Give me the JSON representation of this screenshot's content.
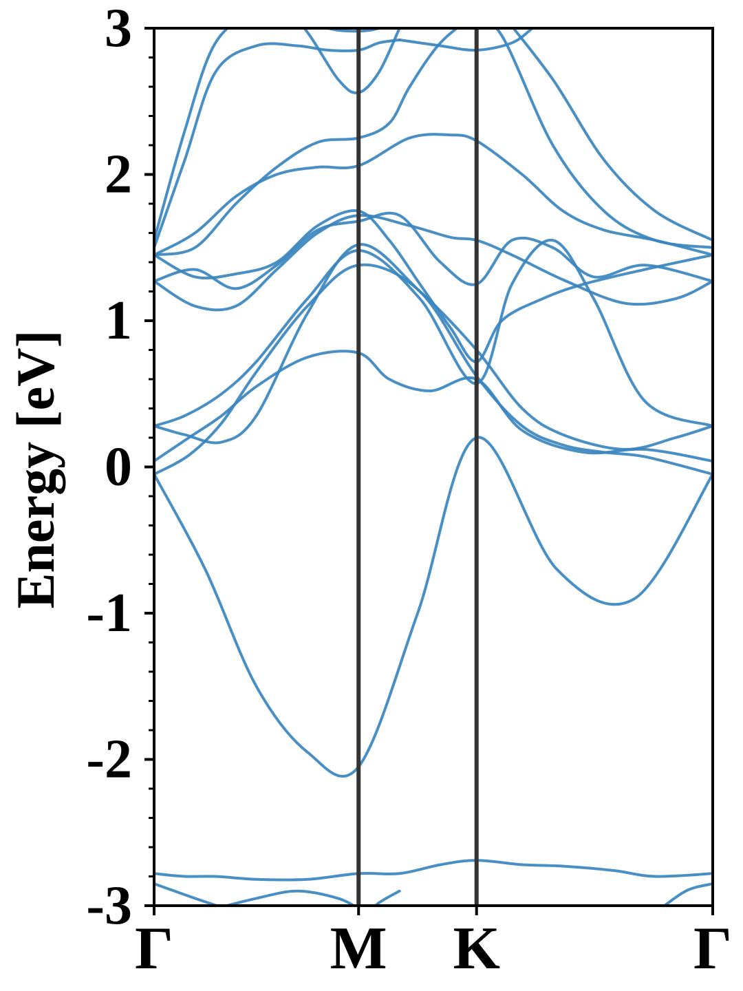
{
  "chart_data": {
    "type": "line",
    "title": "",
    "xlabel": "",
    "ylabel": "Energy [eV]",
    "ylim": [
      -3,
      3
    ],
    "yticks": [
      "3",
      "2",
      "1",
      "0",
      "-1",
      "-2",
      "-3"
    ],
    "ytick_values": [
      3,
      2,
      1,
      0,
      -1,
      -2,
      -3
    ],
    "x_ticks": [
      {
        "label": "Γ",
        "k": 0.0
      },
      {
        "label": "M",
        "k": 1.0
      },
      {
        "label": "K",
        "k": 1.577
      },
      {
        "label": "Γ",
        "k": 2.732
      }
    ],
    "xlim": [
      0,
      2.732
    ],
    "grid": false,
    "line_color": "#3a86bf",
    "vline_color": "#333333",
    "series": [
      {
        "x": [
          0,
          0.25,
          0.5,
          0.75,
          1.0,
          1.289,
          1.577,
          1.97,
          2.35,
          2.732
        ],
        "values": [
          -0.05,
          -0.7,
          -1.5,
          -1.95,
          -2.05,
          -1.0,
          0.2,
          -0.7,
          -0.9,
          -0.05
        ]
      },
      {
        "x": [
          0,
          0.17,
          0.33,
          0.5,
          0.75,
          1.0,
          1.15,
          1.35,
          1.577,
          1.8,
          2.1,
          2.4,
          2.732
        ],
        "values": [
          0.04,
          0.2,
          0.35,
          0.55,
          0.75,
          0.78,
          0.6,
          0.52,
          0.6,
          0.25,
          0.1,
          0.12,
          0.04
        ]
      },
      {
        "x": [
          0,
          0.17,
          0.33,
          0.5,
          0.75,
          1.0,
          1.3,
          1.577,
          1.8,
          2.0,
          2.2,
          2.4,
          2.732
        ],
        "values": [
          -0.05,
          0.08,
          0.3,
          0.65,
          1.1,
          1.38,
          1.2,
          0.62,
          0.28,
          0.15,
          0.1,
          0.07,
          -0.05
        ]
      },
      {
        "x": [
          0,
          0.15,
          0.33,
          0.5,
          0.75,
          1.0,
          1.3,
          1.577,
          1.8,
          2.0,
          2.3,
          2.55,
          2.732
        ],
        "values": [
          0.28,
          0.22,
          0.17,
          0.35,
          1.05,
          1.52,
          1.2,
          0.8,
          0.4,
          0.22,
          0.12,
          0.2,
          0.28
        ]
      },
      {
        "x": [
          0,
          0.15,
          0.33,
          0.5,
          0.75,
          1.0,
          1.3,
          1.577,
          1.75,
          1.95,
          2.15,
          2.4,
          2.732
        ],
        "values": [
          0.28,
          0.35,
          0.5,
          0.72,
          1.15,
          1.48,
          1.15,
          0.57,
          1.25,
          1.55,
          1.15,
          0.45,
          0.28
        ]
      },
      {
        "x": [
          0,
          0.2,
          0.4,
          0.6,
          0.8,
          1.0,
          1.25,
          1.45,
          1.577,
          1.75,
          2.0,
          2.3,
          2.55,
          2.732
        ],
        "values": [
          1.27,
          1.1,
          1.1,
          1.35,
          1.6,
          1.72,
          1.65,
          1.57,
          1.55,
          1.45,
          1.28,
          1.12,
          1.15,
          1.27
        ]
      },
      {
        "x": [
          0,
          0.2,
          0.4,
          0.6,
          0.8,
          1.0,
          1.2,
          1.4,
          1.577,
          1.75,
          1.95,
          2.15,
          2.4,
          2.732
        ],
        "values": [
          1.27,
          1.35,
          1.22,
          1.38,
          1.62,
          1.68,
          1.72,
          1.4,
          1.25,
          1.55,
          1.5,
          1.3,
          1.38,
          1.27
        ]
      },
      {
        "x": [
          0,
          0.2,
          0.4,
          0.6,
          0.8,
          1.0,
          1.15,
          1.3,
          1.45,
          1.577,
          1.7,
          1.9,
          2.1,
          2.4,
          2.732
        ],
        "values": [
          1.45,
          1.3,
          1.32,
          1.4,
          1.65,
          1.75,
          1.55,
          1.25,
          0.95,
          0.72,
          1.0,
          1.15,
          1.25,
          1.35,
          1.45
        ]
      },
      {
        "x": [
          0,
          0.2,
          0.4,
          0.6,
          0.8,
          1.0,
          1.25,
          1.45,
          1.577,
          1.8,
          2.0,
          2.2,
          2.45,
          2.732
        ],
        "values": [
          1.45,
          1.6,
          1.85,
          2.0,
          2.05,
          2.06,
          2.25,
          2.27,
          2.23,
          2.0,
          1.75,
          1.62,
          1.55,
          1.45
        ]
      },
      {
        "x": [
          0,
          0.2,
          0.4,
          0.6,
          0.8,
          1.0,
          1.15,
          1.25,
          1.4,
          1.577
        ],
        "values": [
          1.45,
          1.5,
          1.8,
          2.05,
          2.22,
          2.25,
          2.35,
          2.6,
          2.9,
          3.1
        ]
      },
      {
        "x": [
          0,
          0.15,
          0.3,
          0.5,
          0.7,
          0.85,
          1.0,
          1.1,
          1.2
        ],
        "values": [
          1.5,
          2.1,
          2.7,
          2.88,
          2.88,
          2.85,
          2.85,
          2.9,
          2.92
        ]
      },
      {
        "x": [
          1.2,
          1.4,
          1.577,
          1.75,
          1.85
        ],
        "values": [
          2.92,
          2.88,
          2.85,
          2.9,
          3.0
        ]
      },
      {
        "x": [
          0,
          0.15,
          0.3,
          0.5,
          0.7,
          0.9,
          1.0,
          1.1,
          1.2
        ],
        "values": [
          1.55,
          2.3,
          2.9,
          3.1,
          3.05,
          2.65,
          2.56,
          2.7,
          3.0
        ]
      },
      {
        "x": [
          0.7,
          0.85,
          1.0,
          1.1,
          1.2
        ],
        "values": [
          3.1,
          3.0,
          2.98,
          3.0,
          3.05
        ]
      },
      {
        "x": [
          1.55,
          1.7,
          1.95,
          2.2,
          2.45,
          2.732
        ],
        "values": [
          3.1,
          2.95,
          2.2,
          1.75,
          1.55,
          1.5
        ]
      },
      {
        "x": [
          1.7,
          1.95,
          2.2,
          2.45,
          2.732
        ],
        "values": [
          3.1,
          2.65,
          2.1,
          1.75,
          1.55
        ]
      },
      {
        "x": [
          0,
          0.15,
          0.3,
          0.5,
          0.75,
          1.0,
          1.2,
          1.4,
          1.577,
          1.8,
          2.0,
          2.25,
          2.45,
          2.732
        ],
        "values": [
          -2.78,
          -2.8,
          -2.8,
          -2.82,
          -2.82,
          -2.78,
          -2.78,
          -2.72,
          -2.69,
          -2.72,
          -2.73,
          -2.76,
          -2.8,
          -2.78
        ]
      },
      {
        "x": [
          0,
          0.1,
          0.2,
          0.35
        ],
        "values": [
          -2.85,
          -2.9,
          -2.95,
          -3.02
        ]
      },
      {
        "x": [
          0.3,
          0.5,
          0.7,
          0.9,
          1.0
        ],
        "values": [
          -3.02,
          -2.95,
          -2.9,
          -2.95,
          -3.02
        ]
      },
      {
        "x": [
          1.05,
          1.1,
          1.2
        ],
        "values": [
          -3.05,
          -2.98,
          -2.9
        ]
      },
      {
        "x": [
          2.45,
          2.6,
          2.732
        ],
        "values": [
          -3.05,
          -2.9,
          -2.85
        ]
      }
    ]
  }
}
